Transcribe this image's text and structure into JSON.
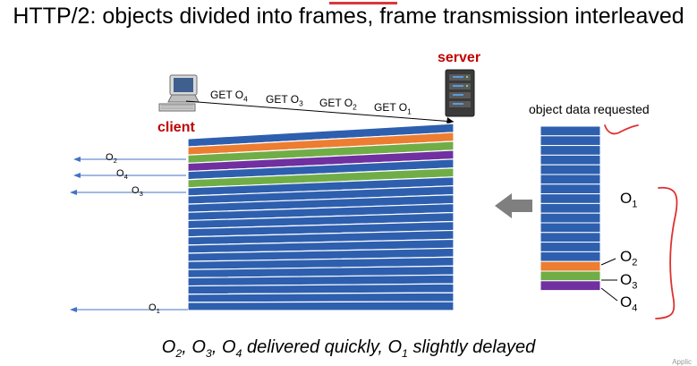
{
  "title": "HTTP/2: objects divided into frames, frame transmission interleaved",
  "server_label": "server",
  "client_label": "client",
  "requests": [
    {
      "base": "GET O",
      "sub": "4"
    },
    {
      "base": "GET O",
      "sub": "3"
    },
    {
      "base": "GET O",
      "sub": "2"
    },
    {
      "base": "GET O",
      "sub": "1"
    }
  ],
  "object_data_label": "object data requested",
  "client_arrivals": [
    {
      "base": "O",
      "sub": "2"
    },
    {
      "base": "O",
      "sub": "4"
    },
    {
      "base": "O",
      "sub": "3"
    },
    {
      "base": "O",
      "sub": "1"
    }
  ],
  "object_labels": [
    {
      "base": "O",
      "sub": "1"
    },
    {
      "base": "O",
      "sub": "2"
    },
    {
      "base": "O",
      "sub": "3"
    },
    {
      "base": "O",
      "sub": "4"
    }
  ],
  "caption": {
    "parts": [
      {
        "base": "O",
        "sub": "2",
        "sep": ", "
      },
      {
        "base": "O",
        "sub": "3",
        "sep": ", "
      },
      {
        "base": "O",
        "sub": "4",
        "sep": " delivered quickly, "
      },
      {
        "base": "O",
        "sub": "1",
        "sep": " slightly delayed"
      }
    ]
  },
  "corner_text": "Applic",
  "colors": {
    "frame_blue": "#2e5fae",
    "o2_orange": "#ed7d31",
    "o3_green": "#70ad47",
    "o4_purple": "#7030a0",
    "label_red": "#c00000",
    "arrow_blue": "#4472c4",
    "big_arrow_gray": "#7f7f7f",
    "annotation_red": "#e03030"
  }
}
